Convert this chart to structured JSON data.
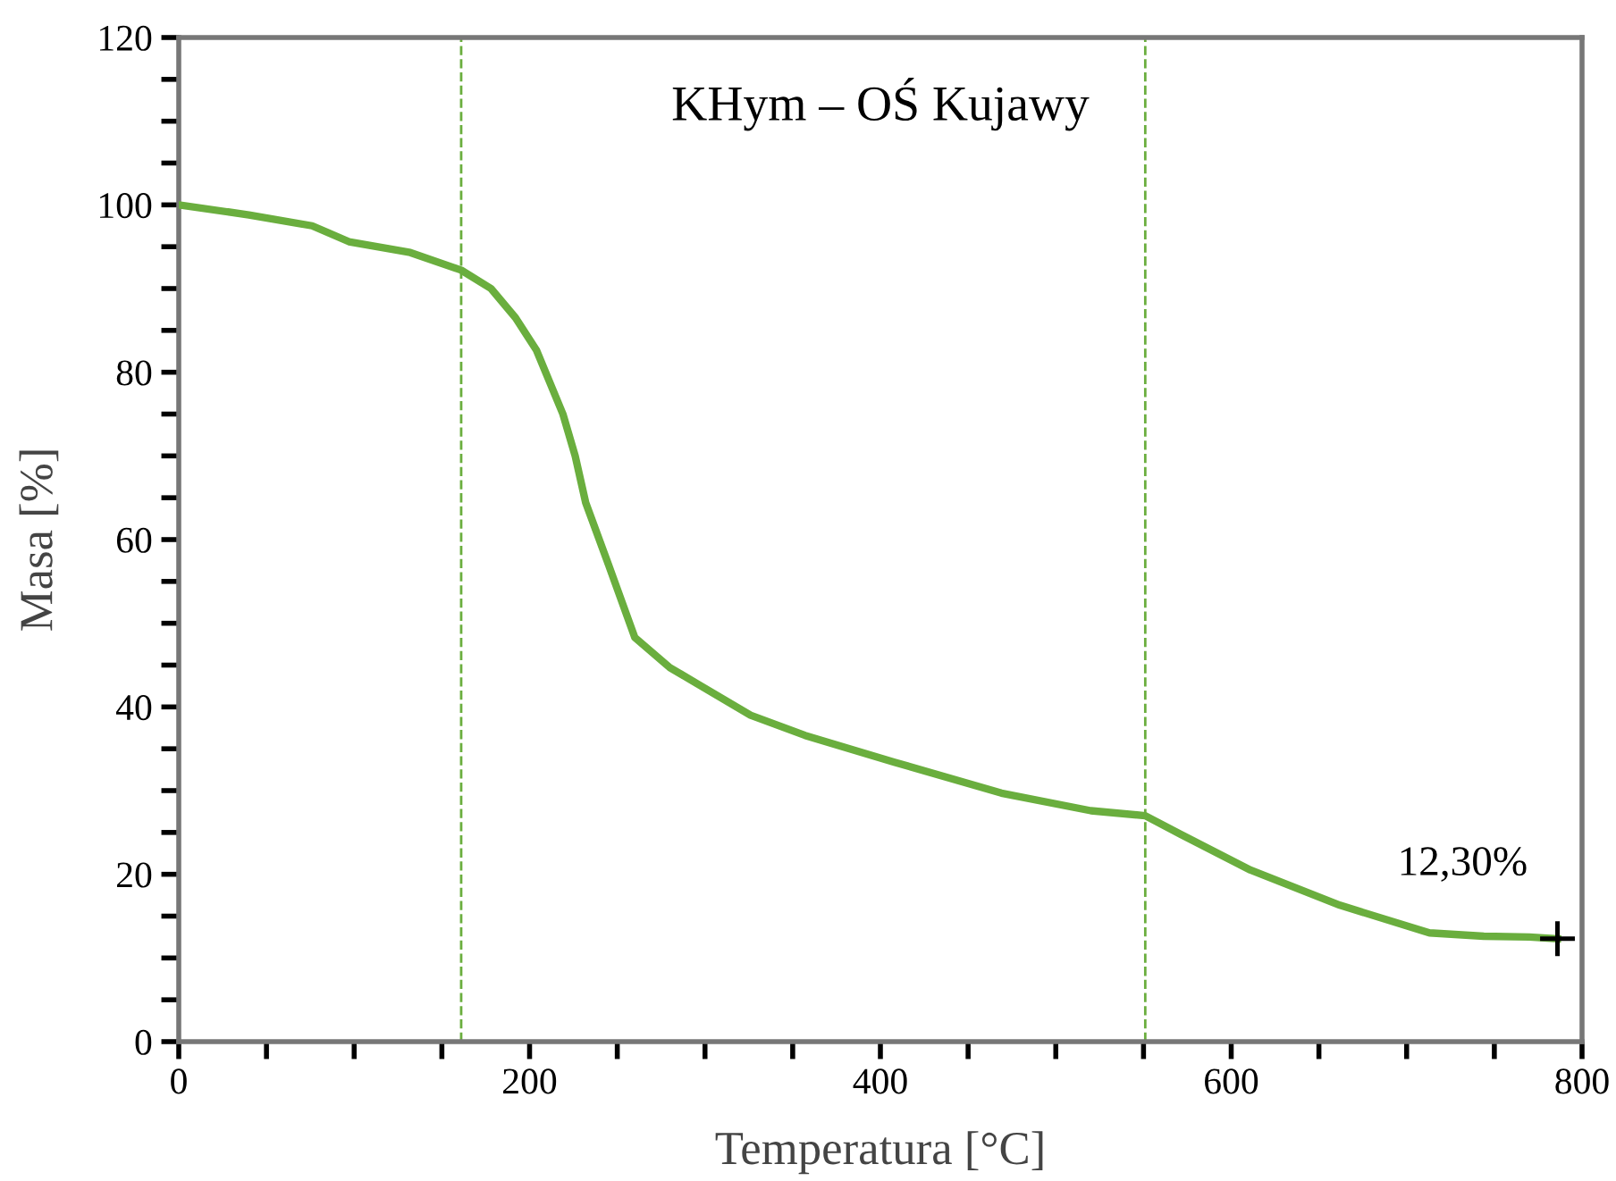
{
  "chart_data": {
    "type": "line",
    "title": "KHym – OŚ Kujawy",
    "xlabel": "Temperatura [°C]",
    "ylabel": "Masa [%]",
    "x": [
      0,
      40,
      76,
      97,
      132,
      161,
      178,
      192,
      204,
      219,
      226,
      232,
      245,
      260,
      280,
      326,
      357,
      408,
      469,
      520,
      551,
      571,
      611,
      662,
      713,
      744,
      770,
      786
    ],
    "series": [
      {
        "color": "#6aae3e",
        "values": [
          100,
          98.8,
          97.5,
          95.6,
          94.3,
          92.2,
          90,
          86.5,
          82.6,
          75,
          70,
          64.4,
          57,
          48.3,
          44.7,
          39,
          36.6,
          33.4,
          29.7,
          27.6,
          27,
          24.8,
          20.5,
          16.3,
          13,
          12.6,
          12.5,
          12.3
        ]
      }
    ],
    "xlim": [
      0,
      800
    ],
    "ylim": [
      0,
      120
    ],
    "xticks": [
      0,
      {
        "value": 50,
        "label": null
      },
      {
        "value": 100,
        "label": null
      },
      {
        "value": 150,
        "label": null
      },
      200,
      {
        "value": 250,
        "label": null
      },
      {
        "value": 300,
        "label": null
      },
      {
        "value": 350,
        "label": null
      },
      400,
      {
        "value": 450,
        "label": null
      },
      {
        "value": 500,
        "label": null
      },
      {
        "value": 550,
        "label": null
      },
      600,
      {
        "value": 650,
        "label": null
      },
      {
        "value": 700,
        "label": null
      },
      {
        "value": 750,
        "label": null
      },
      800
    ],
    "yticks": [
      0,
      {
        "value": 5,
        "label": null
      },
      {
        "value": 10,
        "label": null
      },
      {
        "value": 15,
        "label": null
      },
      20,
      {
        "value": 25,
        "label": null
      },
      {
        "value": 30,
        "label": null
      },
      {
        "value": 35,
        "label": null
      },
      40,
      {
        "value": 45,
        "label": null
      },
      {
        "value": 50,
        "label": null
      },
      {
        "value": 55,
        "label": null
      },
      60,
      {
        "value": 65,
        "label": null
      },
      {
        "value": 70,
        "label": null
      },
      {
        "value": 75,
        "label": null
      },
      80,
      {
        "value": 85,
        "label": null
      },
      {
        "value": 90,
        "label": null
      },
      {
        "value": 95,
        "label": null
      },
      100,
      {
        "value": 105,
        "label": null
      },
      {
        "value": 110,
        "label": null
      },
      {
        "value": 115,
        "label": null
      },
      120
    ],
    "ref_lines": [
      {
        "axis": "x",
        "value": 161,
        "color": "#6aae3e",
        "line_style": "dashed"
      },
      {
        "axis": "x",
        "value": 551,
        "color": "#6aae3e",
        "line_style": "dashed"
      }
    ],
    "annotations": [
      {
        "text": "12,30%",
        "x": 786,
        "y": 12.3
      }
    ],
    "grid": false,
    "legend": false,
    "marker": "none",
    "line_style": "solid"
  }
}
